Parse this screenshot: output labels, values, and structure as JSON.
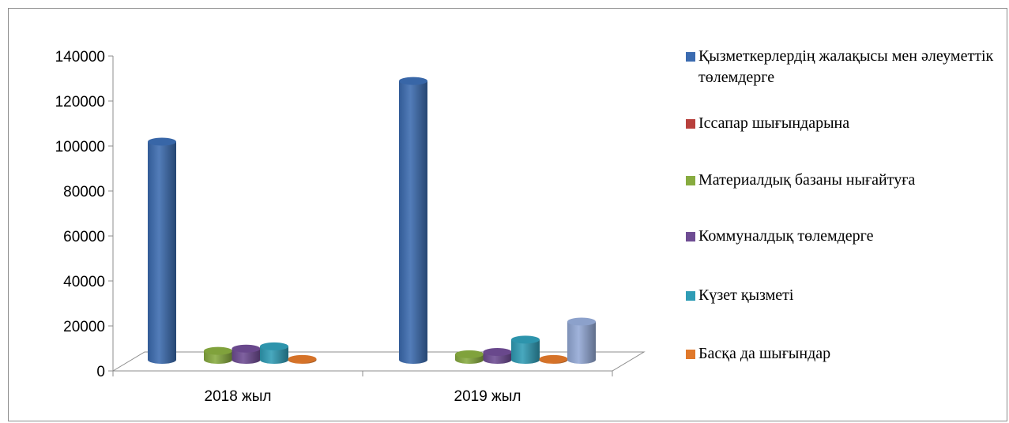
{
  "chart_data": {
    "type": "bar",
    "categories": [
      "2018 жыл",
      "2019 жыл"
    ],
    "y_ticks": [
      "0",
      "20000",
      "40000",
      "60000",
      "80000",
      "100000",
      "120000",
      "140000"
    ],
    "ylim": [
      0,
      140000
    ],
    "legend_position": "right",
    "series": [
      {
        "name": "Қызметкерлердің жалақысы мен әлеуметтік төлемдерге",
        "color": "#3b6bb0",
        "values": [
          97000,
          124000
        ]
      },
      {
        "name": "Іссапар шығындарына",
        "color": "#b8403c",
        "values": [
          0,
          0
        ]
      },
      {
        "name": "Материалдық базаны нығайтуға",
        "color": "#87ab3f",
        "values": [
          4000,
          2500
        ]
      },
      {
        "name": "Коммуналдық төлемдерге",
        "color": "#6e4c93",
        "values": [
          5000,
          3500
        ]
      },
      {
        "name": "Күзет қызметі",
        "color": "#2f9cb5",
        "values": [
          6000,
          9000
        ]
      },
      {
        "name": "Басқа да шығындар",
        "color": "#e0782a",
        "values": [
          400,
          400
        ]
      },
      {
        "name": "",
        "color": "#93a9d6",
        "values": [
          0,
          17000
        ]
      }
    ]
  }
}
